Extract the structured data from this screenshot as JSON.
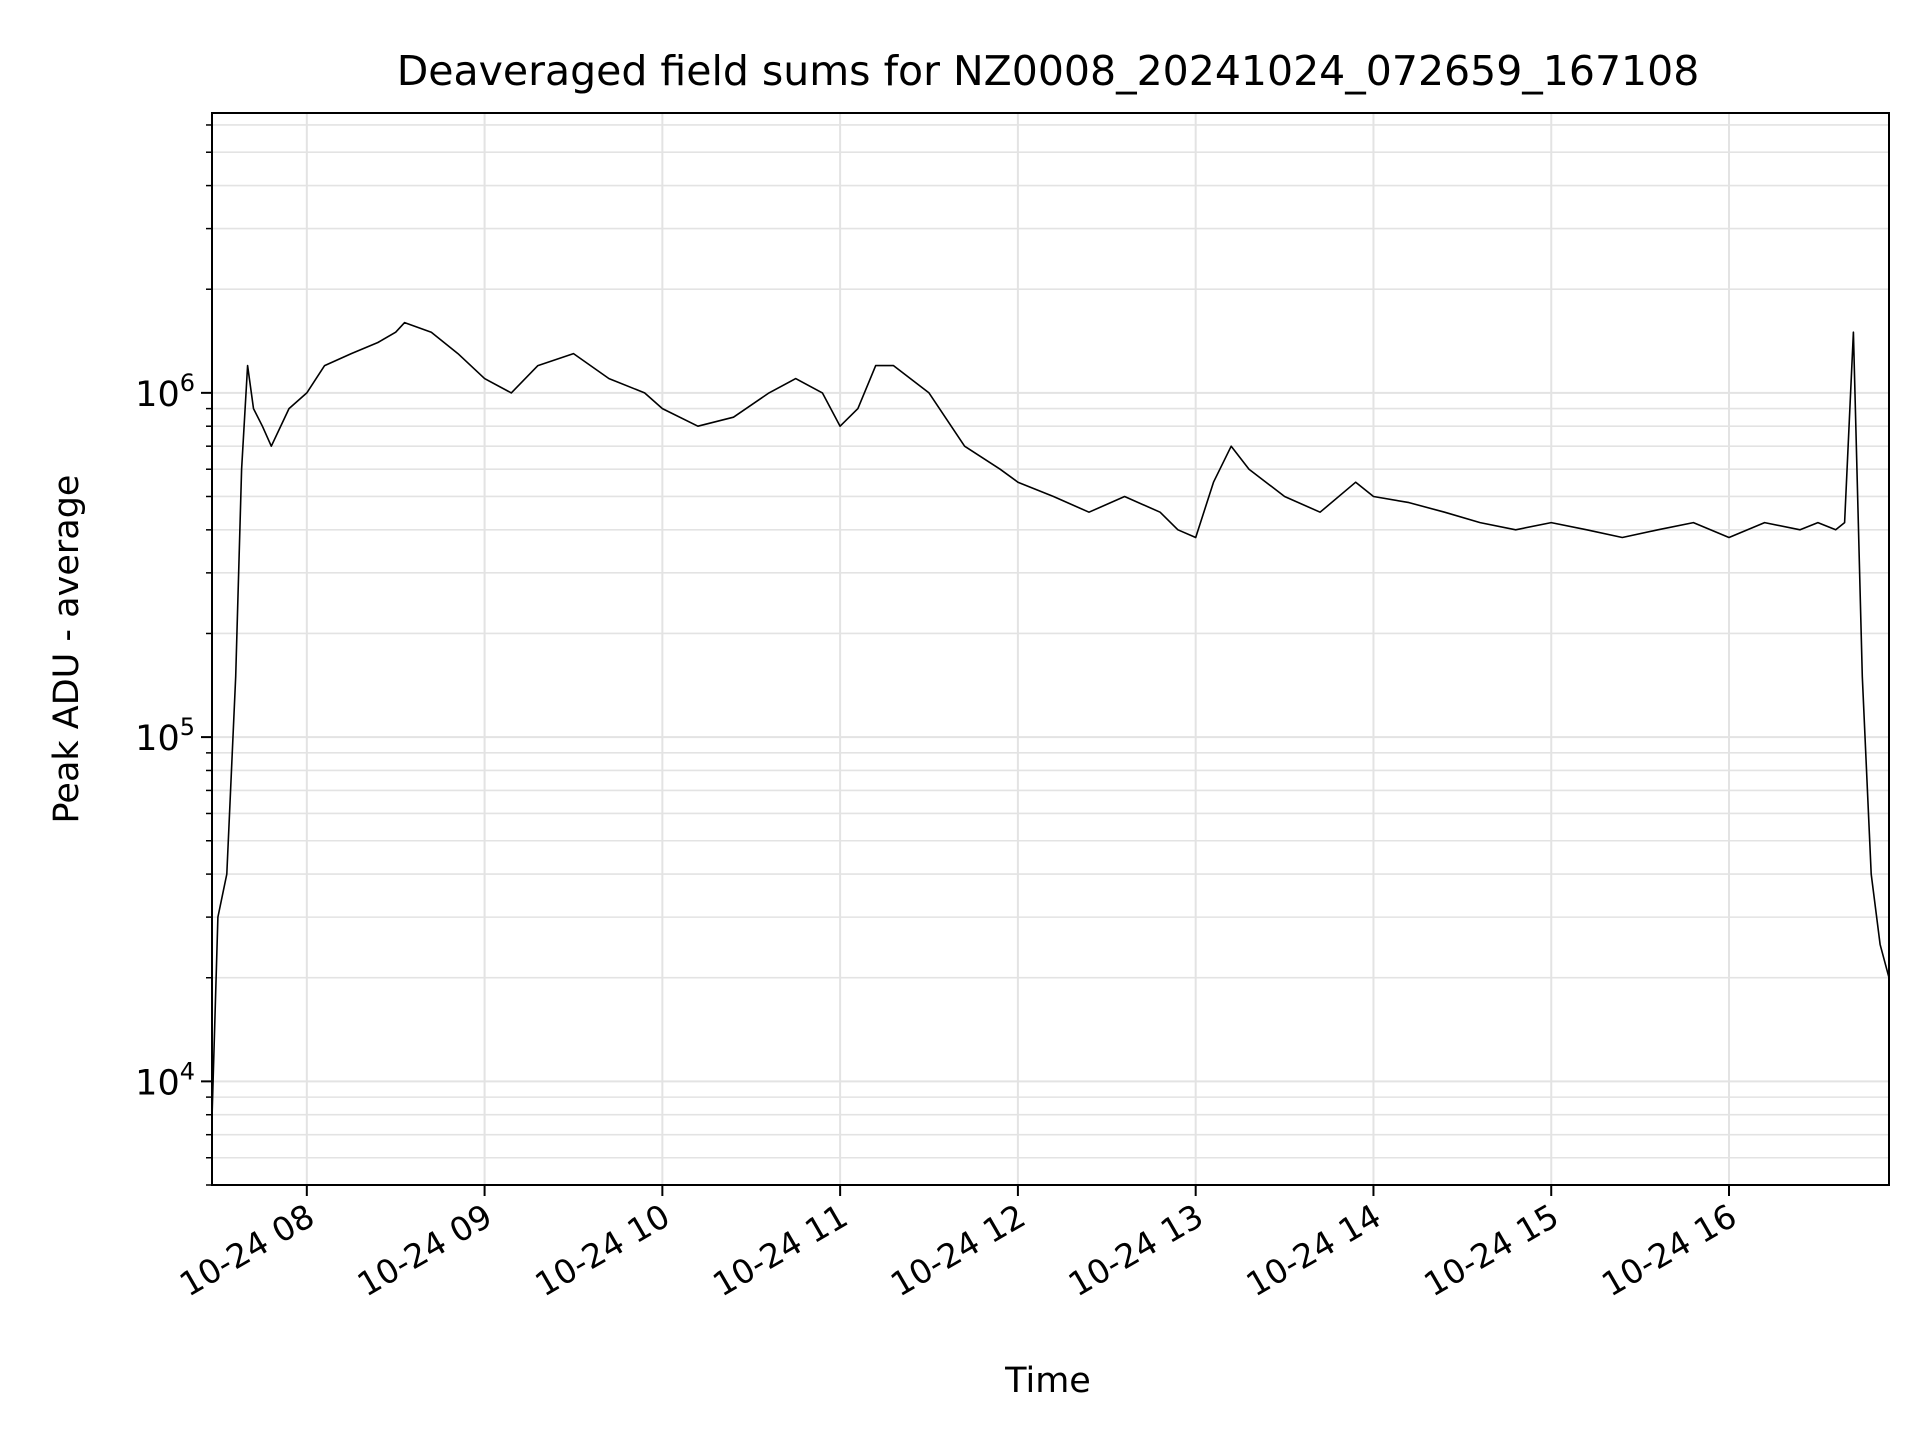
{
  "chart_data": {
    "type": "line",
    "title": "Deaveraged field sums for NZ0008_20241024_072659_167108",
    "xlabel": "Time",
    "ylabel": "Peak ADU - average",
    "yscale": "log",
    "ylim": [
      5000,
      6500000
    ],
    "xlim": [
      "2024-10-24 07:28",
      "2024-10-24 16:54"
    ],
    "x_ticks": [
      "10-24 08",
      "10-24 09",
      "10-24 10",
      "10-24 11",
      "10-24 12",
      "10-24 13",
      "10-24 14",
      "10-24 15",
      "10-24 16"
    ],
    "y_ticks": [
      {
        "base": "10",
        "exp": "4",
        "value": 10000
      },
      {
        "base": "10",
        "exp": "5",
        "value": 100000
      },
      {
        "base": "10",
        "exp": "6",
        "value": 1000000
      }
    ],
    "grid": true,
    "line_color": "#000000",
    "series": [
      {
        "x_unit": "time of day (decimal hours, 2024-10-24)",
        "x": [
          7.467,
          7.5,
          7.55,
          7.6,
          7.633,
          7.667,
          7.7,
          7.75,
          7.8,
          7.9,
          8.0,
          8.1,
          8.25,
          8.4,
          8.5,
          8.55,
          8.7,
          8.85,
          9.0,
          9.15,
          9.3,
          9.5,
          9.7,
          9.9,
          10.0,
          10.2,
          10.4,
          10.6,
          10.75,
          10.9,
          11.0,
          11.1,
          11.2,
          11.3,
          11.5,
          11.7,
          11.9,
          12.0,
          12.2,
          12.4,
          12.6,
          12.8,
          12.9,
          13.0,
          13.1,
          13.2,
          13.3,
          13.5,
          13.7,
          13.9,
          14.0,
          14.2,
          14.4,
          14.6,
          14.8,
          15.0,
          15.2,
          15.4,
          15.6,
          15.8,
          16.0,
          16.2,
          16.4,
          16.5,
          16.6,
          16.65,
          16.7,
          16.75,
          16.8,
          16.85,
          16.9
        ],
        "y": [
          8000,
          30000,
          40000,
          150000,
          600000,
          1200000,
          900000,
          800000,
          700000,
          900000,
          1000000,
          1200000,
          1300000,
          1400000,
          1500000,
          1600000,
          1500000,
          1300000,
          1100000,
          1000000,
          1200000,
          1300000,
          1100000,
          1000000,
          900000,
          800000,
          850000,
          1000000,
          1100000,
          1000000,
          800000,
          900000,
          1200000,
          1200000,
          1000000,
          700000,
          600000,
          550000,
          500000,
          450000,
          500000,
          450000,
          400000,
          380000,
          550000,
          700000,
          600000,
          500000,
          450000,
          550000,
          500000,
          480000,
          450000,
          420000,
          400000,
          420000,
          400000,
          380000,
          400000,
          420000,
          380000,
          420000,
          400000,
          420000,
          400000,
          420000,
          1500000,
          150000,
          40000,
          25000,
          20000
        ]
      }
    ]
  }
}
